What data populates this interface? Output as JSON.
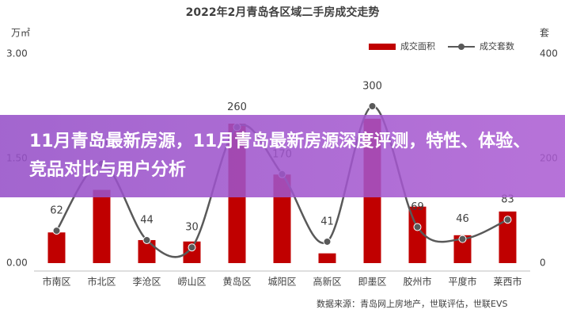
{
  "chart_data": {
    "type": "bar",
    "title": "2022年2月青岛各区域二手房成交走势",
    "y_label": "万㎡",
    "y2_label": "套",
    "categories": [
      "市南区",
      "市北区",
      "李沧区",
      "崂山区",
      "黄岛区",
      "城阳区",
      "高新区",
      "即墨区",
      "胶州市",
      "平度市",
      "莱西市"
    ],
    "series": [
      {
        "name": "成交面积",
        "color": "#c00000",
        "values": [
          0.44,
          1.05,
          0.33,
          0.31,
          2.0,
          1.27,
          0.14,
          2.07,
          0.81,
          0.4,
          0.74
        ]
      },
      {
        "name": "成交套数",
        "color": "#595959",
        "type": "line",
        "axis": "y2",
        "values": [
          62,
          190,
          44,
          30,
          260,
          170,
          41,
          300,
          69,
          46,
          83
        ]
      }
    ],
    "ylim": [
      0,
      3
    ],
    "yticks": [
      {
        "value": 0,
        "label": "0.00"
      },
      {
        "value": 1.5,
        "label": "1.50"
      },
      {
        "value": 3,
        "label": "3.00"
      }
    ],
    "y2lim": [
      0,
      400
    ],
    "y2ticks": [
      0,
      200,
      400
    ],
    "legend": "top-right",
    "source": "数据来源：青岛网上房地产，世联评估，世联EVS"
  },
  "banner": {
    "title": "11月青岛最新房源，11月青岛最新房源深度评测，特性、体验、竞品对比与用户分析"
  }
}
